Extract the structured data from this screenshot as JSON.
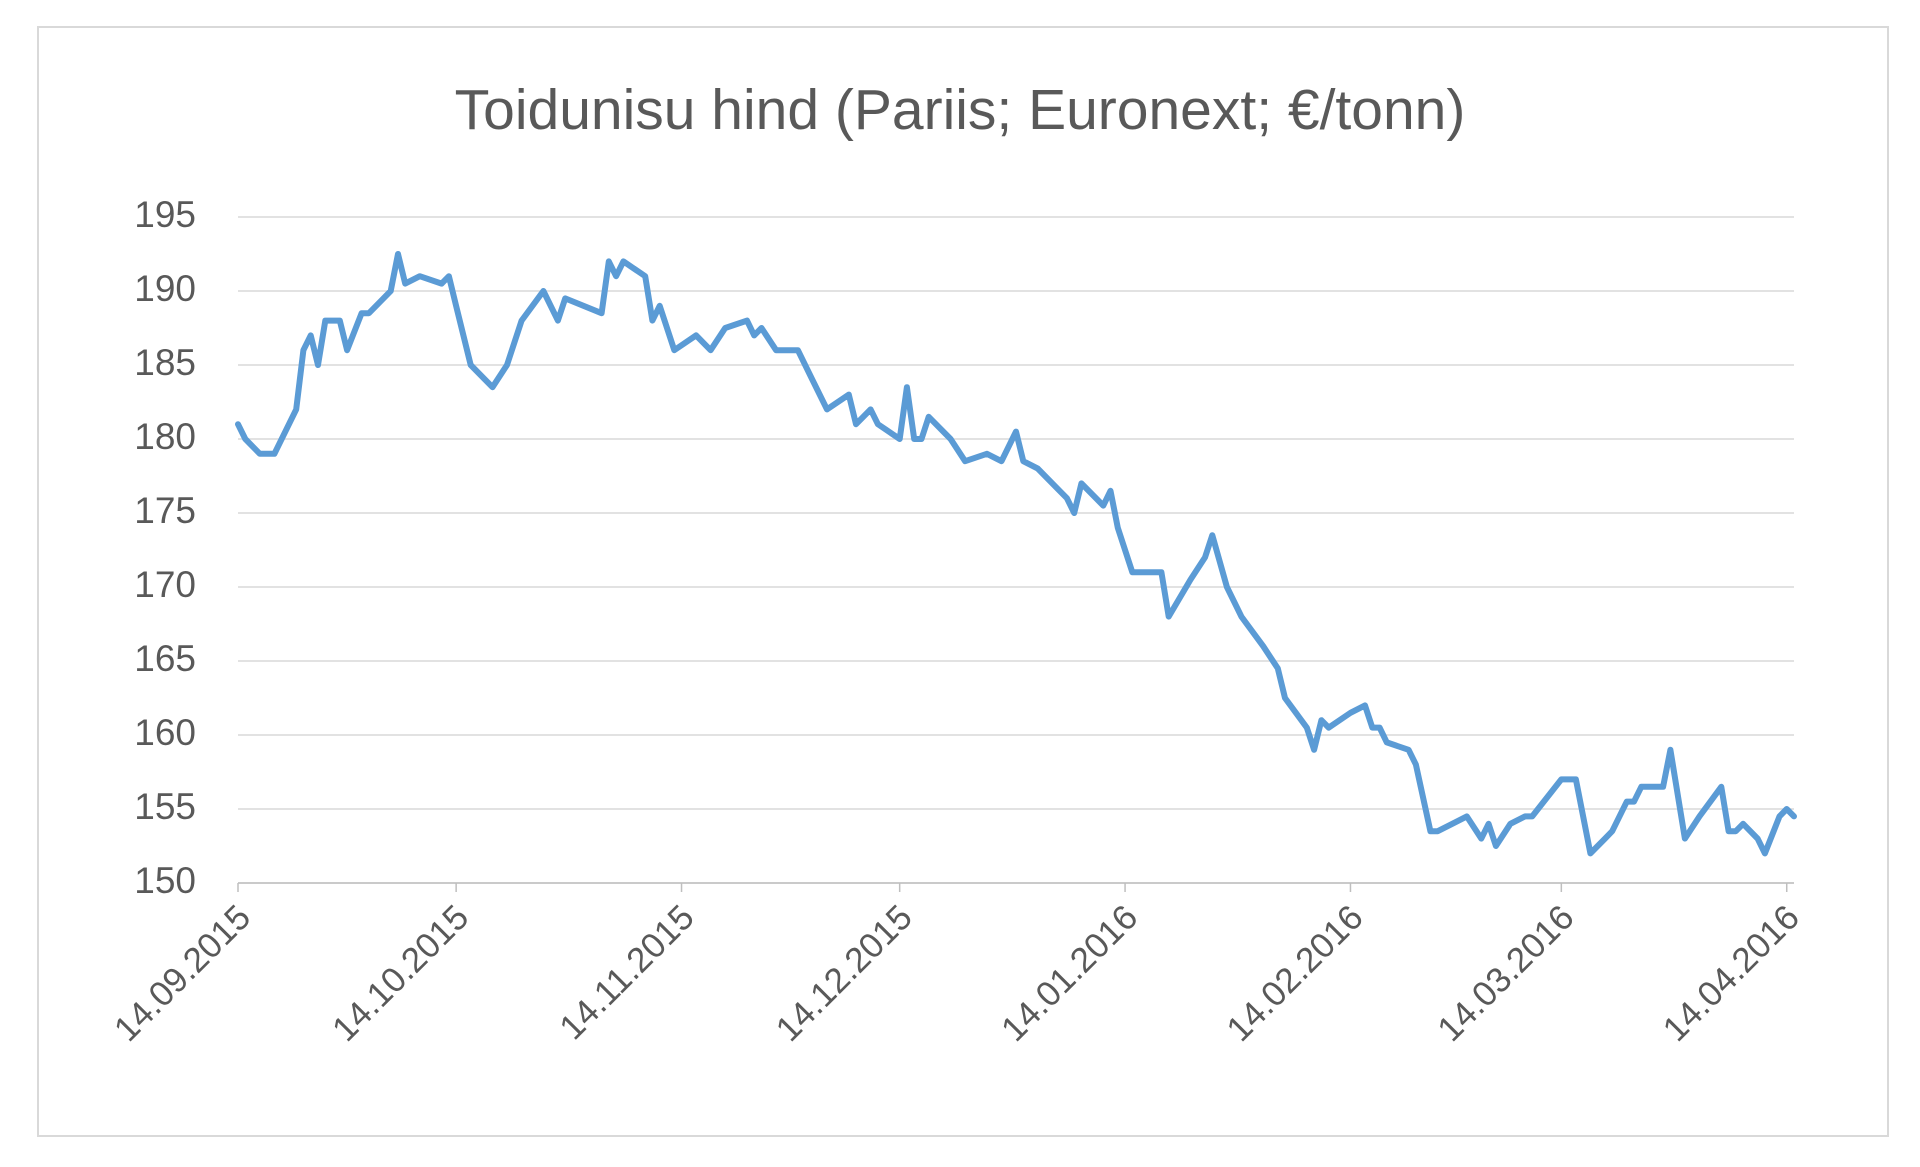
{
  "chart_data": {
    "type": "line",
    "title": "Toidunisu hind (Pariis; Euronext; €/tonn)",
    "color": "#5b9bd5",
    "grid": true,
    "ylim": [
      150,
      195
    ],
    "yticks": [
      150,
      155,
      160,
      165,
      170,
      175,
      180,
      185,
      190,
      195
    ],
    "xlim": [
      "14.09.2015",
      "15.04.2016"
    ],
    "xticks": [
      "14.09.2015",
      "14.10.2015",
      "14.11.2015",
      "14.12.2015",
      "14.01.2016",
      "14.02.2016",
      "14.03.2016",
      "14.04.2016"
    ],
    "x": [
      "14.09.2015",
      "15.09.2015",
      "17.09.2015",
      "19.09.2015",
      "22.09.2015",
      "23.09.2015",
      "24.09.2015",
      "25.09.2015",
      "26.09.2015",
      "28.09.2015",
      "29.09.2015",
      "01.10.2015",
      "02.10.2015",
      "05.10.2015",
      "06.10.2015",
      "07.10.2015",
      "09.10.2015",
      "12.10.2015",
      "13.10.2015",
      "14.10.2015",
      "16.10.2015",
      "19.10.2015",
      "21.10.2015",
      "23.10.2015",
      "26.10.2015",
      "28.10.2015",
      "29.10.2015",
      "03.11.2015",
      "04.11.2015",
      "05.11.2015",
      "06.11.2015",
      "09.11.2015",
      "10.11.2015",
      "11.11.2015",
      "13.11.2015",
      "16.11.2015",
      "18.11.2015",
      "20.11.2015",
      "23.11.2015",
      "24.11.2015",
      "25.11.2015",
      "27.11.2015",
      "30.11.2015",
      "02.12.2015",
      "04.12.2015",
      "07.12.2015",
      "08.12.2015",
      "10.12.2015",
      "11.12.2015",
      "14.12.2015",
      "15.12.2015",
      "16.12.2015",
      "17.12.2015",
      "18.12.2015",
      "21.12.2015",
      "23.12.2015",
      "26.12.2015",
      "28.12.2015",
      "30.12.2015",
      "31.12.2015",
      "02.01.2016",
      "05.01.2016",
      "06.01.2016",
      "07.01.2016",
      "08.01.2016",
      "11.01.2016",
      "12.01.2016",
      "13.01.2016",
      "15.01.2016",
      "19.01.2016",
      "20.01.2016",
      "23.01.2016",
      "25.01.2016",
      "26.01.2016",
      "28.01.2016",
      "30.01.2016",
      "02.02.2016",
      "04.02.2016",
      "05.02.2016",
      "08.02.2016",
      "09.02.2016",
      "10.02.2016",
      "11.02.2016",
      "14.02.2016",
      "16.02.2016",
      "17.02.2016",
      "18.02.2016",
      "19.02.2016",
      "22.02.2016",
      "23.02.2016",
      "25.02.2016",
      "26.02.2016",
      "28.02.2016",
      "01.03.2016",
      "03.03.2016",
      "04.03.2016",
      "05.03.2016",
      "07.03.2016",
      "09.03.2016",
      "10.03.2016",
      "14.03.2016",
      "16.03.2016",
      "18.03.2016",
      "20.03.2016",
      "21.03.2016",
      "23.03.2016",
      "24.03.2016",
      "25.03.2016",
      "28.03.2016",
      "29.03.2016",
      "31.03.2016",
      "02.04.2016",
      "05.04.2016",
      "06.04.2016",
      "07.04.2016",
      "08.04.2016",
      "10.04.2016",
      "11.04.2016",
      "13.04.2016",
      "14.04.2016",
      "15.04.2016"
    ],
    "values": [
      181,
      180,
      179,
      179,
      182,
      186,
      187,
      185,
      188,
      188,
      186,
      188.5,
      188.5,
      190,
      192.5,
      190.5,
      191,
      190.5,
      191,
      189,
      185,
      183.5,
      185,
      188,
      190,
      188,
      189.5,
      188.5,
      192,
      191,
      192,
      191,
      188,
      189,
      186,
      187,
      186,
      187.5,
      188,
      187,
      187.5,
      186,
      186,
      184,
      182,
      183,
      181,
      182,
      181,
      180,
      183.5,
      180,
      180,
      181.5,
      180,
      178.5,
      179,
      178.5,
      180.5,
      178.5,
      178,
      176.5,
      176,
      175,
      177,
      175.5,
      176.5,
      174,
      171,
      171,
      168,
      170.5,
      172,
      173.5,
      170,
      168,
      166,
      164.5,
      162.5,
      160.5,
      159,
      161,
      160.5,
      161.5,
      162,
      160.5,
      160.5,
      159.5,
      159,
      158,
      153.5,
      153.5,
      154,
      154.5,
      153,
      154,
      152.5,
      154,
      154.5,
      154.5,
      157,
      157,
      152,
      153,
      153.5,
      155.5,
      155.5,
      156.5,
      156.5,
      159,
      153,
      154.5,
      156.5,
      153.5,
      153.5,
      154,
      153,
      152,
      154.5,
      155,
      154.5
    ]
  }
}
